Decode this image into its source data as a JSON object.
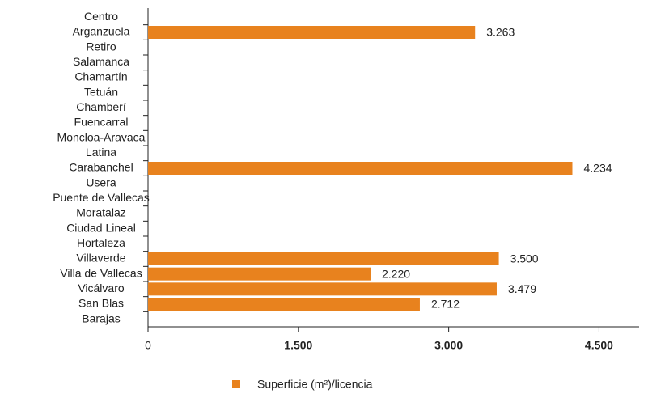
{
  "chart_data": {
    "type": "bar",
    "orientation": "horizontal",
    "categories": [
      "Centro",
      "Arganzuela",
      "Retiro",
      "Salamanca",
      "Chamartín",
      "Tetuán",
      "Chamberí",
      "Fuencarral",
      "Moncloa-Aravaca",
      "Latina",
      "Carabanchel",
      "Usera",
      "Puente de Vallecas",
      "Moratalaz",
      "Ciudad Lineal",
      "Hortaleza",
      "Villaverde",
      "Villa de Vallecas",
      "Vicálvaro",
      "San Blas",
      "Barajas"
    ],
    "series": [
      {
        "name": "Superficie (m²)/licencia",
        "color": "#e8821e",
        "values": [
          null,
          3263,
          null,
          null,
          null,
          null,
          null,
          null,
          null,
          null,
          4234,
          null,
          null,
          null,
          null,
          null,
          3500,
          2220,
          3479,
          2712,
          null
        ],
        "value_labels": [
          null,
          "3.263",
          null,
          null,
          null,
          null,
          null,
          null,
          null,
          null,
          "4.234",
          null,
          null,
          null,
          null,
          null,
          "3.500",
          "2.220",
          "3.479",
          "2.712",
          null
        ]
      }
    ],
    "xlim": [
      0,
      4900
    ],
    "xticks": [
      0,
      {
        "value": 1500,
        "label": "1.500"
      },
      {
        "value": 3000,
        "label": "3.000"
      },
      {
        "value": 4500,
        "label": "4.500"
      }
    ],
    "legend": "bottom"
  }
}
